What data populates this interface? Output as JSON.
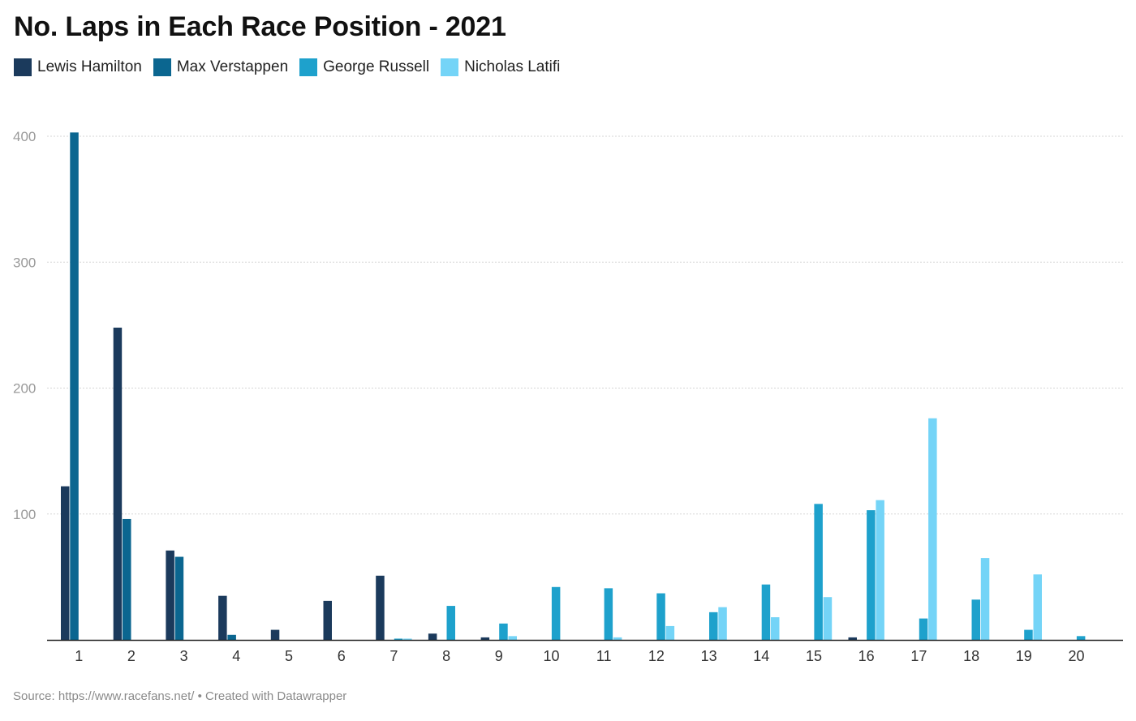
{
  "chart_data": {
    "type": "bar",
    "title": "No. Laps in Each Race Position - 2021",
    "xlabel": "",
    "ylabel": "",
    "ylim": [
      0,
      400
    ],
    "yticks": [
      100,
      200,
      300,
      400
    ],
    "grid": true,
    "legend_position": "top-left",
    "categories": [
      "1",
      "2",
      "3",
      "4",
      "5",
      "6",
      "7",
      "8",
      "9",
      "10",
      "11",
      "12",
      "13",
      "14",
      "15",
      "16",
      "17",
      "18",
      "19",
      "20"
    ],
    "series": [
      {
        "name": "Lewis Hamilton",
        "color": "#1b3a5c",
        "values": [
          122,
          248,
          71,
          35,
          8,
          31,
          51,
          5,
          2,
          0,
          0,
          0,
          0,
          0,
          0,
          2,
          0,
          0,
          0,
          0
        ]
      },
      {
        "name": "Max Verstappen",
        "color": "#0b6690",
        "values": [
          403,
          96,
          66,
          4,
          0,
          0,
          0,
          0,
          0,
          0,
          0,
          0,
          0,
          0,
          0,
          0,
          0,
          0,
          0,
          0
        ]
      },
      {
        "name": "George Russell",
        "color": "#1ea1cc",
        "values": [
          0,
          0,
          0,
          0,
          0,
          0,
          1,
          27,
          13,
          42,
          41,
          37,
          22,
          44,
          108,
          103,
          17,
          32,
          8,
          3
        ]
      },
      {
        "name": "Nicholas Latifi",
        "color": "#74d4f7",
        "values": [
          0,
          0,
          0,
          0,
          0,
          0,
          1,
          0,
          3,
          0,
          2,
          11,
          26,
          18,
          34,
          111,
          176,
          65,
          52,
          0
        ]
      }
    ]
  },
  "footer": "Source: https://www.racefans.net/ • Created with Datawrapper"
}
